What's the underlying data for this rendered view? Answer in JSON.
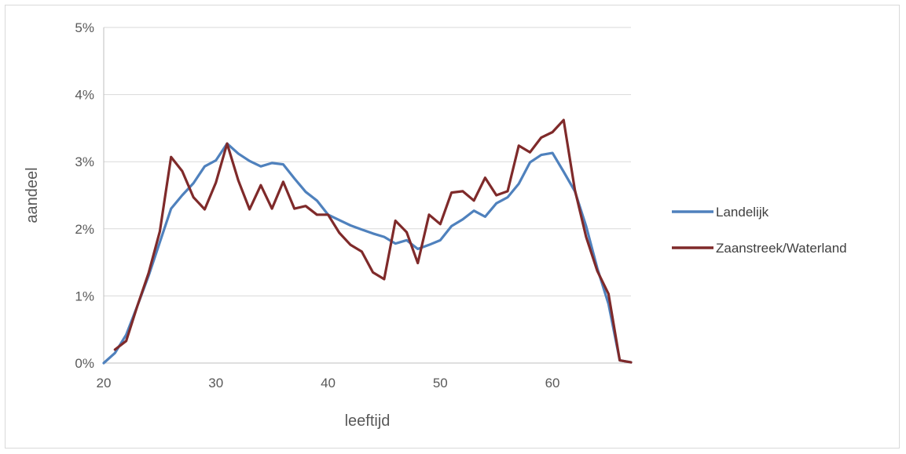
{
  "chart_data": {
    "type": "line",
    "title": "",
    "xlabel": "leeftijd",
    "ylabel": "aandeel",
    "xlim": [
      20,
      67
    ],
    "ylim": [
      0,
      5
    ],
    "x_ticks": [
      20,
      30,
      40,
      50,
      60
    ],
    "x_tick_labels": [
      "20",
      "30",
      "40",
      "50",
      "60"
    ],
    "y_ticks": [
      0,
      1,
      2,
      3,
      4,
      5
    ],
    "y_tick_labels": [
      "0%",
      "1%",
      "2%",
      "3%",
      "4%",
      "5%"
    ],
    "grid": "horizontal",
    "legend_position": "right",
    "series": [
      {
        "name": "Landelijk",
        "color": "#4f81bd",
        "x": [
          20,
          21,
          22,
          23,
          24,
          25,
          26,
          27,
          28,
          29,
          30,
          31,
          32,
          33,
          34,
          35,
          36,
          37,
          38,
          39,
          40,
          41,
          42,
          43,
          44,
          45,
          46,
          47,
          48,
          49,
          50,
          51,
          52,
          53,
          54,
          55,
          56,
          57,
          58,
          59,
          60,
          61,
          62,
          63,
          64,
          65,
          66,
          67
        ],
        "values": [
          0.0,
          0.15,
          0.42,
          0.85,
          1.3,
          1.8,
          2.3,
          2.5,
          2.68,
          2.93,
          3.02,
          3.27,
          3.12,
          3.01,
          2.93,
          2.98,
          2.96,
          2.75,
          2.55,
          2.42,
          2.21,
          2.13,
          2.05,
          1.99,
          1.93,
          1.88,
          1.78,
          1.83,
          1.7,
          1.76,
          1.83,
          2.04,
          2.14,
          2.27,
          2.18,
          2.38,
          2.47,
          2.67,
          2.99,
          3.1,
          3.13,
          2.85,
          2.56,
          2.04,
          1.41,
          0.88,
          0.04,
          0.01
        ]
      },
      {
        "name": "Zaanstreek/Waterland",
        "color": "#7f2a2a",
        "x": [
          21,
          22,
          23,
          24,
          25,
          26,
          27,
          28,
          29,
          30,
          31,
          32,
          33,
          34,
          35,
          36,
          37,
          38,
          39,
          40,
          41,
          42,
          43,
          44,
          45,
          46,
          47,
          48,
          49,
          50,
          51,
          52,
          53,
          54,
          55,
          56,
          57,
          58,
          59,
          60,
          61,
          62,
          63,
          64,
          65,
          66,
          67
        ],
        "values": [
          0.2,
          0.33,
          0.85,
          1.34,
          1.96,
          3.07,
          2.86,
          2.47,
          2.29,
          2.69,
          3.27,
          2.72,
          2.29,
          2.65,
          2.3,
          2.7,
          2.3,
          2.34,
          2.21,
          2.21,
          1.94,
          1.76,
          1.66,
          1.35,
          1.25,
          2.12,
          1.95,
          1.49,
          2.21,
          2.07,
          2.54,
          2.56,
          2.42,
          2.76,
          2.5,
          2.56,
          3.24,
          3.14,
          3.36,
          3.44,
          3.62,
          2.58,
          1.88,
          1.37,
          1.03,
          0.04,
          0.01
        ]
      }
    ]
  }
}
